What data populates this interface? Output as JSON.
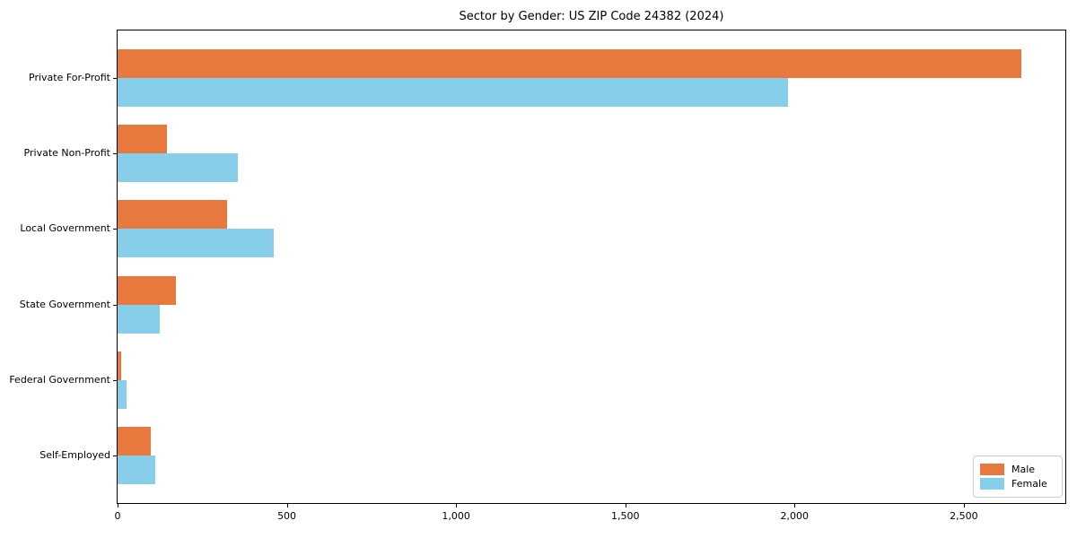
{
  "chart_data": {
    "type": "bar",
    "orientation": "horizontal",
    "title": "Sector by Gender: US ZIP Code 24382 (2024)",
    "categories": [
      "Private For-Profit",
      "Private Non-Profit",
      "Local Government",
      "State Government",
      "Federal Government",
      "Self-Employed"
    ],
    "series": [
      {
        "name": "Male",
        "color": "#e8793e",
        "values": [
          2670,
          147,
          324,
          171,
          11,
          98
        ]
      },
      {
        "name": "Female",
        "color": "#87ceeb",
        "values": [
          1980,
          354,
          460,
          125,
          27,
          112
        ]
      }
    ],
    "xlabel": "",
    "ylabel": "",
    "xlim": [
      0,
      2800
    ],
    "xticks": [
      {
        "value": 0,
        "label": "0"
      },
      {
        "value": 500,
        "label": "500"
      },
      {
        "value": 1000,
        "label": "1,000"
      },
      {
        "value": 1500,
        "label": "1,500"
      },
      {
        "value": 2000,
        "label": "2,000"
      },
      {
        "value": 2500,
        "label": "2,500"
      }
    ],
    "grid": false,
    "legend": {
      "position": "lower right",
      "entries": [
        "Male",
        "Female"
      ]
    },
    "colors": {
      "background": "#ffffff",
      "spine": "#000000",
      "male": "#e8793e",
      "female": "#87ceeb"
    }
  }
}
